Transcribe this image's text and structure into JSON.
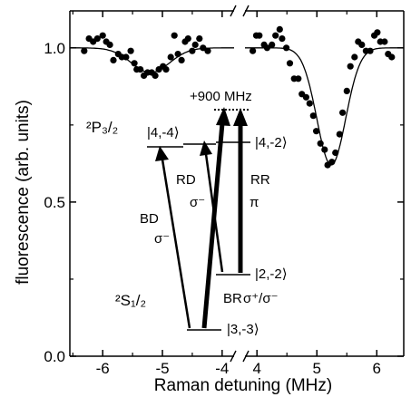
{
  "chart_data": {
    "type": "scatter",
    "xlabel": "Raman detuning (MHz)",
    "ylabel": "fluorescence (arb. units)",
    "ylim": [
      0.0,
      1.12
    ],
    "grid": false,
    "legend": "none",
    "axis_break": true,
    "panels": [
      {
        "name": "left",
        "xlim": [
          -6.55,
          -3.8
        ],
        "x_ticks": [
          -6,
          -5,
          -4
        ],
        "x_tick_labels": [
          "-6",
          "-5",
          "-4"
        ],
        "points": [
          [
            -6.31,
            0.99
          ],
          [
            -6.23,
            1.03
          ],
          [
            -6.16,
            1.02
          ],
          [
            -6.09,
            1.03
          ],
          [
            -6.0,
            1.04
          ],
          [
            -5.94,
            1.02
          ],
          [
            -5.88,
            1.01
          ],
          [
            -5.82,
            0.96
          ],
          [
            -5.74,
            0.98
          ],
          [
            -5.68,
            0.97
          ],
          [
            -5.61,
            0.97
          ],
          [
            -5.53,
            0.99
          ],
          [
            -5.47,
            0.95
          ],
          [
            -5.43,
            0.93
          ],
          [
            -5.37,
            0.93
          ],
          [
            -5.31,
            0.91
          ],
          [
            -5.25,
            0.92
          ],
          [
            -5.18,
            0.92
          ],
          [
            -5.12,
            0.91
          ],
          [
            -5.06,
            0.93
          ],
          [
            -4.99,
            0.94
          ],
          [
            -4.94,
            0.93
          ],
          [
            -4.86,
            0.97
          ],
          [
            -4.8,
            1.04
          ],
          [
            -4.74,
            0.98
          ],
          [
            -4.68,
            0.96
          ],
          [
            -4.62,
            1.02
          ],
          [
            -4.57,
            1.03
          ],
          [
            -4.5,
            0.99
          ],
          [
            -4.45,
            1.01
          ],
          [
            -4.38,
            1.03
          ],
          [
            -4.32,
            1.0
          ],
          [
            -4.24,
            0.99
          ]
        ],
        "fit": {
          "baseline": 1.0,
          "depth": 0.08,
          "center": -5.2,
          "width": 0.32
        }
      },
      {
        "name": "right",
        "xlim": [
          3.8,
          6.45
        ],
        "x_ticks": [
          4,
          5,
          6
        ],
        "x_tick_labels": [
          "4",
          "5",
          "6"
        ],
        "points": [
          [
            3.93,
            0.99
          ],
          [
            3.99,
            1.04
          ],
          [
            4.04,
            1.04
          ],
          [
            4.12,
            1.01
          ],
          [
            4.17,
            1.0
          ],
          [
            4.25,
            1.01
          ],
          [
            4.31,
            1.04
          ],
          [
            4.38,
            1.06
          ],
          [
            4.42,
            1.03
          ],
          [
            4.49,
            1.0
          ],
          [
            4.55,
            0.95
          ],
          [
            4.62,
            0.9
          ],
          [
            4.69,
            0.9
          ],
          [
            4.75,
            0.85
          ],
          [
            4.82,
            0.84
          ],
          [
            4.88,
            0.82
          ],
          [
            4.94,
            0.78
          ],
          [
            4.99,
            0.73
          ],
          [
            5.06,
            0.69
          ],
          [
            5.13,
            0.67
          ],
          [
            5.18,
            0.62
          ],
          [
            5.25,
            0.63
          ],
          [
            5.31,
            0.66
          ],
          [
            5.38,
            0.72
          ],
          [
            5.43,
            0.79
          ],
          [
            5.5,
            0.86
          ],
          [
            5.56,
            0.94
          ],
          [
            5.63,
            0.97
          ],
          [
            5.69,
            1.02
          ],
          [
            5.75,
            1.01
          ],
          [
            5.82,
            0.99
          ],
          [
            5.89,
            0.99
          ],
          [
            5.96,
            1.04
          ],
          [
            6.01,
            1.05
          ],
          [
            6.06,
            1.02
          ],
          [
            6.13,
            1.02
          ],
          [
            6.19,
            0.98
          ],
          [
            6.25,
            0.97
          ]
        ],
        "fit": {
          "baseline": 1.0,
          "depth": 0.38,
          "center": 5.24,
          "width": 0.24
        }
      }
    ],
    "y_ticks": [
      0.0,
      0.5,
      1.0
    ],
    "y_tick_labels": [
      "0.0",
      "0.5",
      "1.0"
    ],
    "annotations": {
      "upper_manifold": "²P₃/₂",
      "lower_manifold": "²S₁/₂",
      "offset": "+900 MHz",
      "states": [
        "|4,-4⟩",
        "|4,-2⟩",
        "|2,-2⟩",
        "|3,-3⟩"
      ],
      "transitions": [
        {
          "name": "BD",
          "polarization": "σ⁻"
        },
        {
          "name": "RD",
          "polarization": "σ⁻"
        },
        {
          "name": "RR",
          "polarization": "π"
        },
        {
          "name": "BR",
          "polarization": "σ⁺/σ⁻"
        }
      ]
    }
  }
}
